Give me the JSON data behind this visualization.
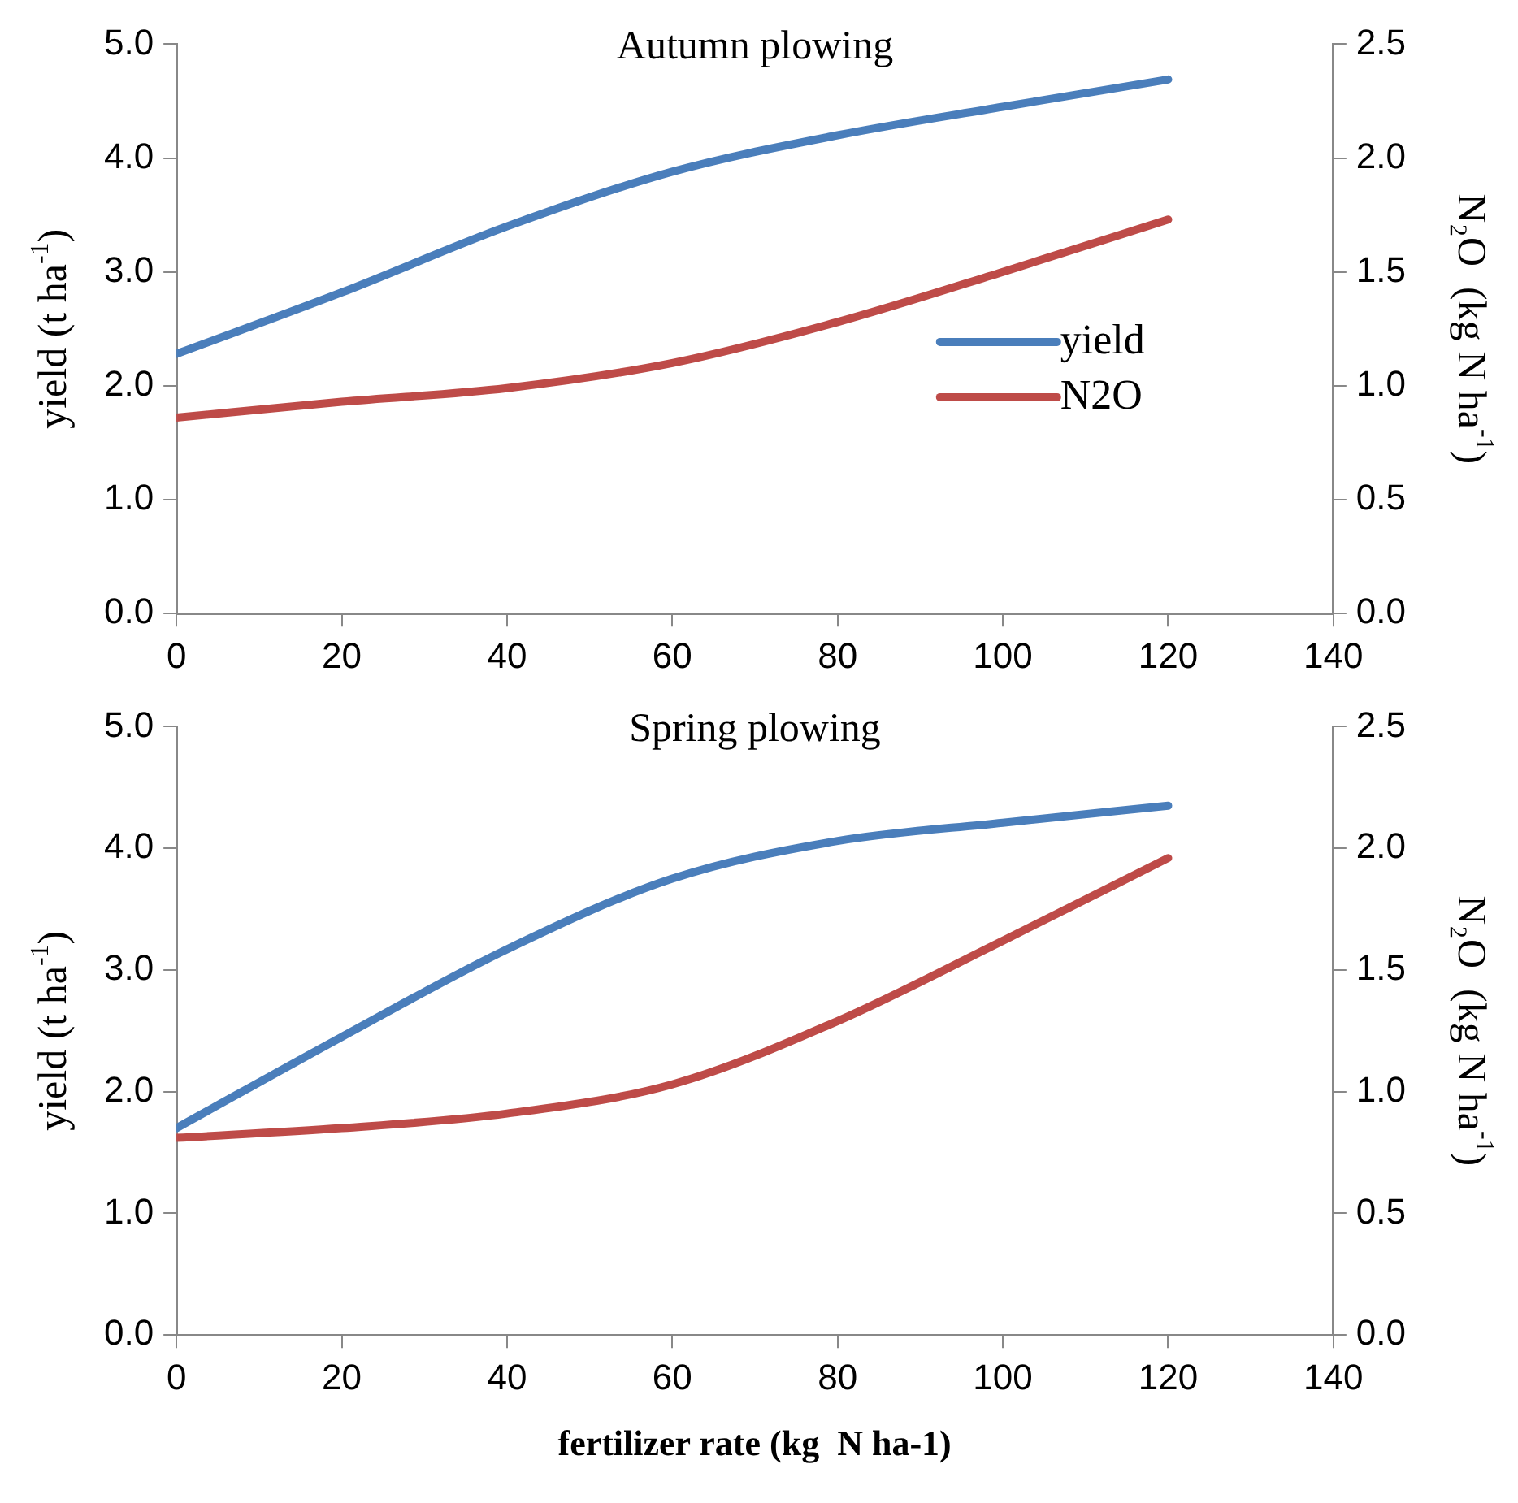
{
  "chart_data": [
    {
      "type": "line",
      "title": "Autumn plowing",
      "ylabel": "yield (t ha$^{-1}$)",
      "y2label": "N₂O  (kg N ha$^{-1}$)",
      "x": [
        0,
        20,
        40,
        60,
        80,
        100,
        120
      ],
      "series": [
        {
          "name": "yield",
          "color": "#4a7ebb",
          "values": [
            2.28,
            2.82,
            3.4,
            3.88,
            4.2,
            4.45,
            4.69
          ]
        },
        {
          "name": "N2O",
          "color": "#be4b48",
          "axis": "y2",
          "values": [
            0.86,
            0.93,
            0.99,
            1.1,
            1.28,
            1.5,
            1.73
          ]
        }
      ],
      "xlim": [
        0,
        140
      ],
      "xticks": [
        0,
        20,
        40,
        60,
        80,
        100,
        120,
        140
      ],
      "ylim": [
        0,
        5
      ],
      "yticks": [
        {
          "value": 0,
          "label": "0.0"
        },
        {
          "value": 1,
          "label": "1.0"
        },
        {
          "value": 2,
          "label": "2.0"
        },
        {
          "value": 3,
          "label": "3.0"
        },
        {
          "value": 4,
          "label": "4.0"
        },
        {
          "value": 5,
          "label": "5.0"
        }
      ],
      "y2lim": [
        0,
        2.5
      ],
      "y2ticks": [
        {
          "value": 0,
          "label": "0.0"
        },
        {
          "value": 0.5,
          "label": "0.5"
        },
        {
          "value": 1,
          "label": "1.0"
        },
        {
          "value": 1.5,
          "label": "1.5"
        },
        {
          "value": 2,
          "label": "2.0"
        },
        {
          "value": 2.5,
          "label": "2.5"
        }
      ],
      "legend": "right",
      "marker": "none",
      "line_style": "solid"
    },
    {
      "type": "line",
      "title": "Spring plowing",
      "xlabel": "fertilizer rate (kg  N ha-1)",
      "ylabel": "yield (t ha$^{-1}$)",
      "y2label": "N₂O  (kg N ha$^{-1}$)",
      "x": [
        0,
        20,
        40,
        60,
        80,
        100,
        120
      ],
      "series": [
        {
          "color": "#4a7ebb",
          "values": [
            1.7,
            2.45,
            3.17,
            3.75,
            4.06,
            4.21,
            4.35
          ]
        },
        {
          "color": "#be4b48",
          "axis": "y2",
          "values": [
            0.81,
            0.85,
            0.91,
            1.03,
            1.29,
            1.62,
            1.96
          ]
        }
      ],
      "xlim": [
        0,
        140
      ],
      "xticks": [
        0,
        20,
        40,
        60,
        80,
        100,
        120,
        140
      ],
      "ylim": [
        0,
        5
      ],
      "yticks": [
        {
          "value": 0,
          "label": "0.0"
        },
        {
          "value": 1,
          "label": "1.0"
        },
        {
          "value": 2,
          "label": "2.0"
        },
        {
          "value": 3,
          "label": "3.0"
        },
        {
          "value": 4,
          "label": "4.0"
        },
        {
          "value": 5,
          "label": "5.0"
        }
      ],
      "y2lim": [
        0,
        2.5
      ],
      "y2ticks": [
        {
          "value": 0,
          "label": "0.0"
        },
        {
          "value": 0.5,
          "label": "0.5"
        },
        {
          "value": 1,
          "label": "1.0"
        },
        {
          "value": 1.5,
          "label": "1.5"
        },
        {
          "value": 2,
          "label": "2.0"
        },
        {
          "value": 2.5,
          "label": "2.5"
        }
      ],
      "marker": "none",
      "line_style": "solid"
    }
  ]
}
